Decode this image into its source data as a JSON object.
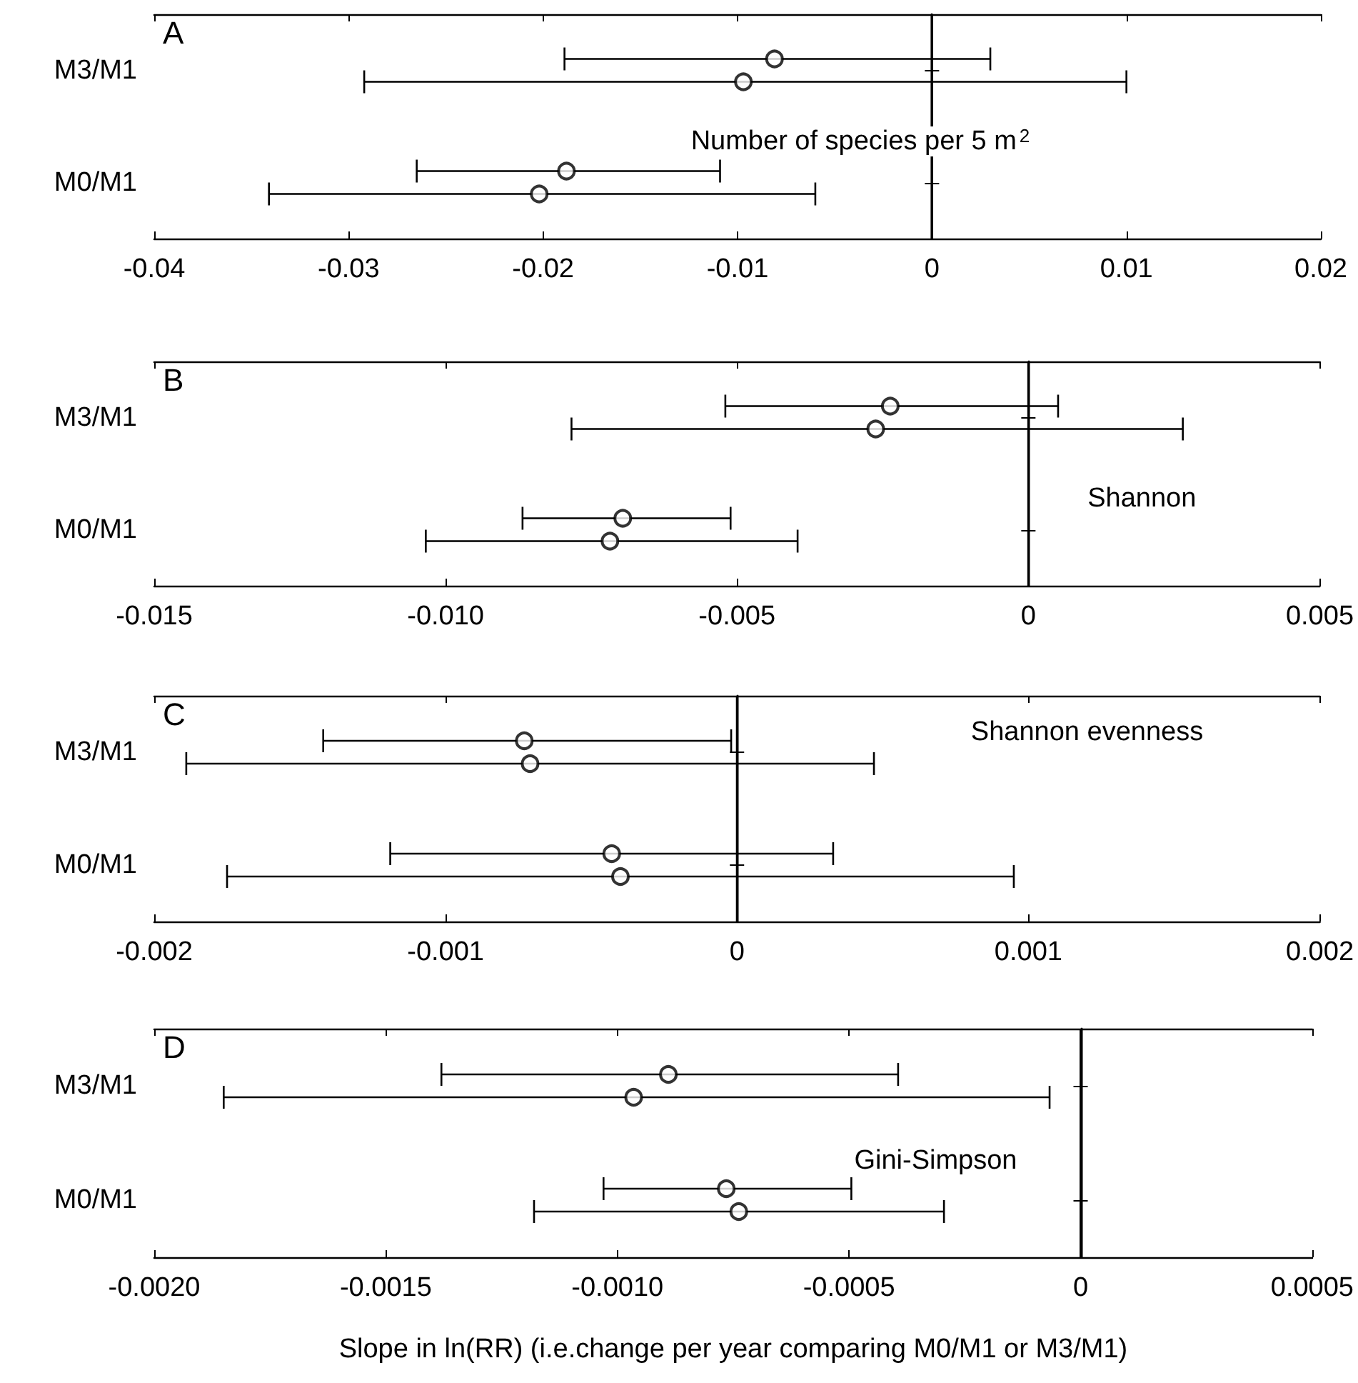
{
  "chart_data": [
    {
      "type": "scatter",
      "orientation": "horizontal",
      "categories": [
        "M3/M1",
        "M0/M1"
      ],
      "marker": "circle",
      "xlim": [
        -0.04,
        0.02
      ],
      "xticks": [
        -0.04,
        -0.03,
        -0.02,
        -0.01,
        0,
        0.01,
        0.02
      ],
      "annotations": [
        "A",
        "Number of species per 5 m$^{2}$"
      ],
      "ref_lines": [
        {
          "axis": "x",
          "value": 0,
          "color": "#000000"
        }
      ],
      "series": [
        {
          "color": "#000000",
          "values": [
            -0.0081,
            -0.0188
          ],
          "errors": [
            [
              -0.0189,
              0.003
            ],
            [
              -0.0265,
              -0.0109
            ]
          ]
        },
        {
          "color": "#000000",
          "values": [
            -0.0097,
            -0.0202
          ],
          "errors": [
            [
              -0.0292,
              0.01
            ],
            [
              -0.0341,
              -0.006
            ]
          ]
        }
      ]
    },
    {
      "type": "scatter",
      "orientation": "horizontal",
      "categories": [
        "M3/M1",
        "M0/M1"
      ],
      "marker": "circle",
      "xlim": [
        -0.015,
        0.005
      ],
      "xticks": [
        -0.015,
        {
          "value": -0.01,
          "label": "-0.010"
        },
        -0.005,
        0,
        0.005
      ],
      "annotations": [
        "B",
        "Shannon"
      ],
      "ref_lines": [
        {
          "axis": "x",
          "value": 0,
          "color": "#000000"
        }
      ],
      "series": [
        {
          "color": "#000000",
          "values": [
            -0.00237,
            -0.00696
          ],
          "errors": [
            [
              -0.0052,
              0.00051
            ],
            [
              -0.00868,
              -0.00511
            ]
          ]
        },
        {
          "color": "#000000",
          "values": [
            -0.00262,
            -0.00718
          ],
          "errors": [
            [
              -0.00784,
              0.00265
            ],
            [
              -0.01034,
              -0.00396
            ]
          ]
        }
      ]
    },
    {
      "type": "scatter",
      "orientation": "horizontal",
      "categories": [
        "M3/M1",
        "M0/M1"
      ],
      "marker": "circle",
      "xlim": [
        -0.002,
        0.002
      ],
      "xticks": [
        -0.002,
        -0.001,
        0,
        0.001,
        0.002
      ],
      "annotations": [
        "C",
        "Shannon evenness"
      ],
      "ref_lines": [
        {
          "axis": "x",
          "value": 0,
          "color": "#000000"
        }
      ],
      "series": [
        {
          "color": "#000000",
          "values": [
            -0.00073,
            -0.00043
          ],
          "errors": [
            [
              -0.00142,
              -2e-05
            ],
            [
              -0.00119,
              0.00033
            ]
          ]
        },
        {
          "color": "#000000",
          "values": [
            -0.00071,
            -0.0004
          ],
          "errors": [
            [
              -0.00189,
              0.00047
            ],
            [
              -0.00175,
              0.00095
            ]
          ]
        }
      ]
    },
    {
      "type": "scatter",
      "orientation": "horizontal",
      "categories": [
        "M3/M1",
        "M0/M1"
      ],
      "marker": "circle",
      "xlim": [
        -0.002,
        0.0005
      ],
      "xticks": [
        {
          "value": -0.002,
          "label": "-0.0020"
        },
        {
          "value": -0.0015,
          "label": "-0.0015"
        },
        {
          "value": -0.001,
          "label": "-0.0010"
        },
        {
          "value": -0.0005,
          "label": "-0.0005"
        },
        0,
        {
          "value": 0.0005,
          "label": "0.0005"
        }
      ],
      "xlabel": "Slope in ln(RR) (i.e.change per year comparing M0/M1 or M3/M1)",
      "annotations": [
        "D",
        "Gini-Simpson"
      ],
      "ref_lines": [
        {
          "axis": "x",
          "value": 0,
          "color": "#000000"
        }
      ],
      "series": [
        {
          "color": "#000000",
          "values": [
            -0.00089,
            -0.000765
          ],
          "errors": [
            [
              -0.00138,
              -0.000394
            ],
            [
              -0.00103,
              -0.000495
            ]
          ]
        },
        {
          "color": "#000000",
          "values": [
            -0.000965,
            -0.000738
          ],
          "errors": [
            [
              -0.00185,
              -6.7e-05
            ],
            [
              -0.00118,
              -0.000295
            ]
          ]
        }
      ]
    }
  ]
}
